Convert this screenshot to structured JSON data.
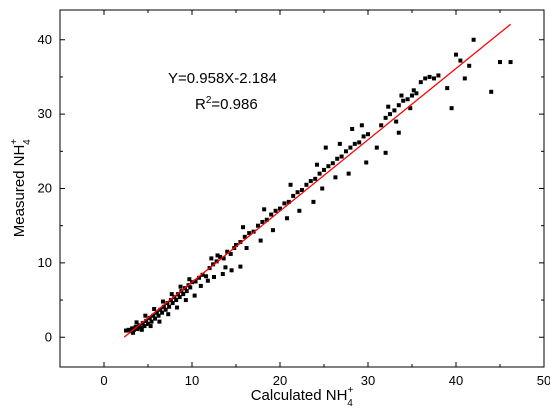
{
  "chart_data": {
    "type": "scatter",
    "title": "",
    "xlabel": {
      "base": "Calculated NH",
      "sub": "4",
      "sup": "+"
    },
    "ylabel": {
      "base": "Measured NH",
      "sub": "4",
      "sup": "+"
    },
    "xlim": [
      -5,
      50
    ],
    "ylim": [
      -4,
      44
    ],
    "xticks": [
      0,
      10,
      20,
      30,
      40,
      50
    ],
    "yticks": [
      0,
      10,
      20,
      30,
      40
    ],
    "grid": false,
    "annotations": {
      "equation": "Y=0.958X-2.184",
      "r2_base": "R",
      "r2_sup": "2",
      "r2_value": "=0.986"
    },
    "fit_line": {
      "slope": 0.958,
      "intercept": -2.184,
      "x_range": [
        2.3,
        46.2
      ],
      "color": "#ff0000"
    },
    "marker_color": "#000000",
    "series": [
      {
        "points": [
          [
            2.5,
            0.9
          ],
          [
            2.8,
            1.0
          ],
          [
            3.0,
            0.8
          ],
          [
            3.2,
            1.2
          ],
          [
            3.4,
            1.0
          ],
          [
            3.6,
            1.4
          ],
          [
            3.8,
            1.1
          ],
          [
            4.0,
            1.6
          ],
          [
            4.2,
            1.3
          ],
          [
            4.4,
            1.9
          ],
          [
            4.6,
            1.5
          ],
          [
            4.8,
            2.2
          ],
          [
            5.0,
            1.8
          ],
          [
            5.2,
            2.6
          ],
          [
            5.4,
            2.1
          ],
          [
            5.6,
            2.9
          ],
          [
            5.8,
            2.5
          ],
          [
            6.0,
            3.3
          ],
          [
            6.2,
            2.9
          ],
          [
            6.4,
            3.7
          ],
          [
            6.6,
            3.3
          ],
          [
            6.8,
            4.1
          ],
          [
            7.0,
            3.7
          ],
          [
            7.2,
            4.6
          ],
          [
            7.4,
            4.1
          ],
          [
            7.6,
            5.0
          ],
          [
            7.8,
            4.6
          ],
          [
            8.0,
            5.4
          ],
          [
            8.2,
            5.0
          ],
          [
            8.4,
            5.8
          ],
          [
            8.6,
            5.4
          ],
          [
            8.8,
            6.2
          ],
          [
            9.0,
            5.8
          ],
          [
            9.2,
            6.6
          ],
          [
            9.4,
            6.2
          ],
          [
            9.6,
            7.0
          ],
          [
            9.8,
            6.7
          ],
          [
            10.0,
            7.4
          ],
          [
            10.4,
            7.5
          ],
          [
            10.8,
            8.0
          ],
          [
            3.3,
            0.6
          ],
          [
            4.3,
            1.0
          ],
          [
            5.3,
            1.5
          ],
          [
            6.3,
            2.1
          ],
          [
            7.3,
            3.1
          ],
          [
            8.3,
            4.0
          ],
          [
            9.3,
            5.0
          ],
          [
            10.3,
            5.6
          ],
          [
            3.7,
            2.0
          ],
          [
            4.7,
            2.9
          ],
          [
            5.7,
            3.8
          ],
          [
            6.7,
            4.8
          ],
          [
            7.7,
            5.8
          ],
          [
            8.7,
            6.8
          ],
          [
            9.7,
            7.8
          ],
          [
            11.2,
            8.4
          ],
          [
            11.6,
            8.2
          ],
          [
            12.0,
            9.3
          ],
          [
            12.4,
            9.8
          ],
          [
            12.8,
            10.2
          ],
          [
            13.2,
            10.8
          ],
          [
            13.6,
            10.6
          ],
          [
            14.0,
            11.5
          ],
          [
            14.4,
            11.2
          ],
          [
            14.8,
            12.0
          ],
          [
            11.0,
            6.9
          ],
          [
            11.8,
            7.6
          ],
          [
            12.5,
            8.1
          ],
          [
            13.5,
            8.5
          ],
          [
            14.5,
            9.0
          ],
          [
            15.5,
            9.5
          ],
          [
            12.2,
            10.6
          ],
          [
            12.9,
            11.0
          ],
          [
            13.8,
            9.4
          ],
          [
            15.0,
            12.4
          ],
          [
            15.5,
            12.8
          ],
          [
            16.0,
            13.5
          ],
          [
            16.5,
            14.0
          ],
          [
            17.0,
            14.2
          ],
          [
            17.5,
            15.0
          ],
          [
            18.0,
            15.5
          ],
          [
            18.5,
            15.8
          ],
          [
            19.0,
            16.5
          ],
          [
            19.5,
            17.0
          ],
          [
            20.0,
            17.3
          ],
          [
            20.5,
            18.0
          ],
          [
            21.0,
            18.2
          ],
          [
            21.5,
            19.0
          ],
          [
            22.0,
            19.5
          ],
          [
            22.5,
            19.8
          ],
          [
            23.0,
            20.5
          ],
          [
            23.5,
            21.0
          ],
          [
            24.0,
            21.3
          ],
          [
            24.5,
            22.0
          ],
          [
            16.2,
            12.0
          ],
          [
            17.8,
            13.0
          ],
          [
            19.2,
            14.4
          ],
          [
            20.8,
            16.0
          ],
          [
            22.2,
            17.0
          ],
          [
            23.8,
            18.2
          ],
          [
            15.8,
            14.8
          ],
          [
            18.2,
            17.2
          ],
          [
            21.2,
            20.5
          ],
          [
            24.2,
            23.2
          ],
          [
            25.0,
            22.5
          ],
          [
            25.5,
            23.0
          ],
          [
            26.0,
            23.4
          ],
          [
            26.5,
            24.0
          ],
          [
            27.0,
            24.3
          ],
          [
            27.5,
            25.0
          ],
          [
            28.0,
            25.5
          ],
          [
            28.5,
            26.0
          ],
          [
            29.0,
            26.2
          ],
          [
            29.5,
            27.0
          ],
          [
            30.0,
            27.3
          ],
          [
            25.2,
            25.5
          ],
          [
            26.8,
            26.0
          ],
          [
            28.2,
            28.0
          ],
          [
            29.3,
            28.5
          ],
          [
            26.3,
            21.5
          ],
          [
            27.8,
            22.0
          ],
          [
            31.0,
            25.5
          ],
          [
            29.8,
            23.5
          ],
          [
            24.8,
            20.0
          ],
          [
            31.5,
            28.5
          ],
          [
            32.0,
            29.5
          ],
          [
            32.5,
            30.0
          ],
          [
            33.0,
            30.5
          ],
          [
            33.5,
            31.2
          ],
          [
            34.0,
            31.8
          ],
          [
            34.5,
            32.0
          ],
          [
            35.0,
            32.5
          ],
          [
            35.5,
            32.8
          ],
          [
            32.3,
            31.0
          ],
          [
            33.8,
            32.5
          ],
          [
            35.2,
            33.2
          ],
          [
            36.0,
            34.3
          ],
          [
            36.5,
            34.8
          ],
          [
            37.0,
            35.0
          ],
          [
            37.5,
            34.8
          ],
          [
            33.2,
            29.0
          ],
          [
            34.8,
            30.8
          ],
          [
            32.0,
            24.8
          ],
          [
            33.5,
            27.5
          ],
          [
            38.0,
            35.2
          ],
          [
            39.0,
            33.5
          ],
          [
            39.5,
            30.8
          ],
          [
            40.0,
            38.0
          ],
          [
            40.5,
            37.2
          ],
          [
            41.0,
            34.8
          ],
          [
            41.5,
            36.5
          ],
          [
            42.0,
            40.0
          ],
          [
            44.0,
            33.0
          ],
          [
            45.0,
            37.0
          ],
          [
            46.2,
            37.0
          ]
        ]
      }
    ]
  }
}
